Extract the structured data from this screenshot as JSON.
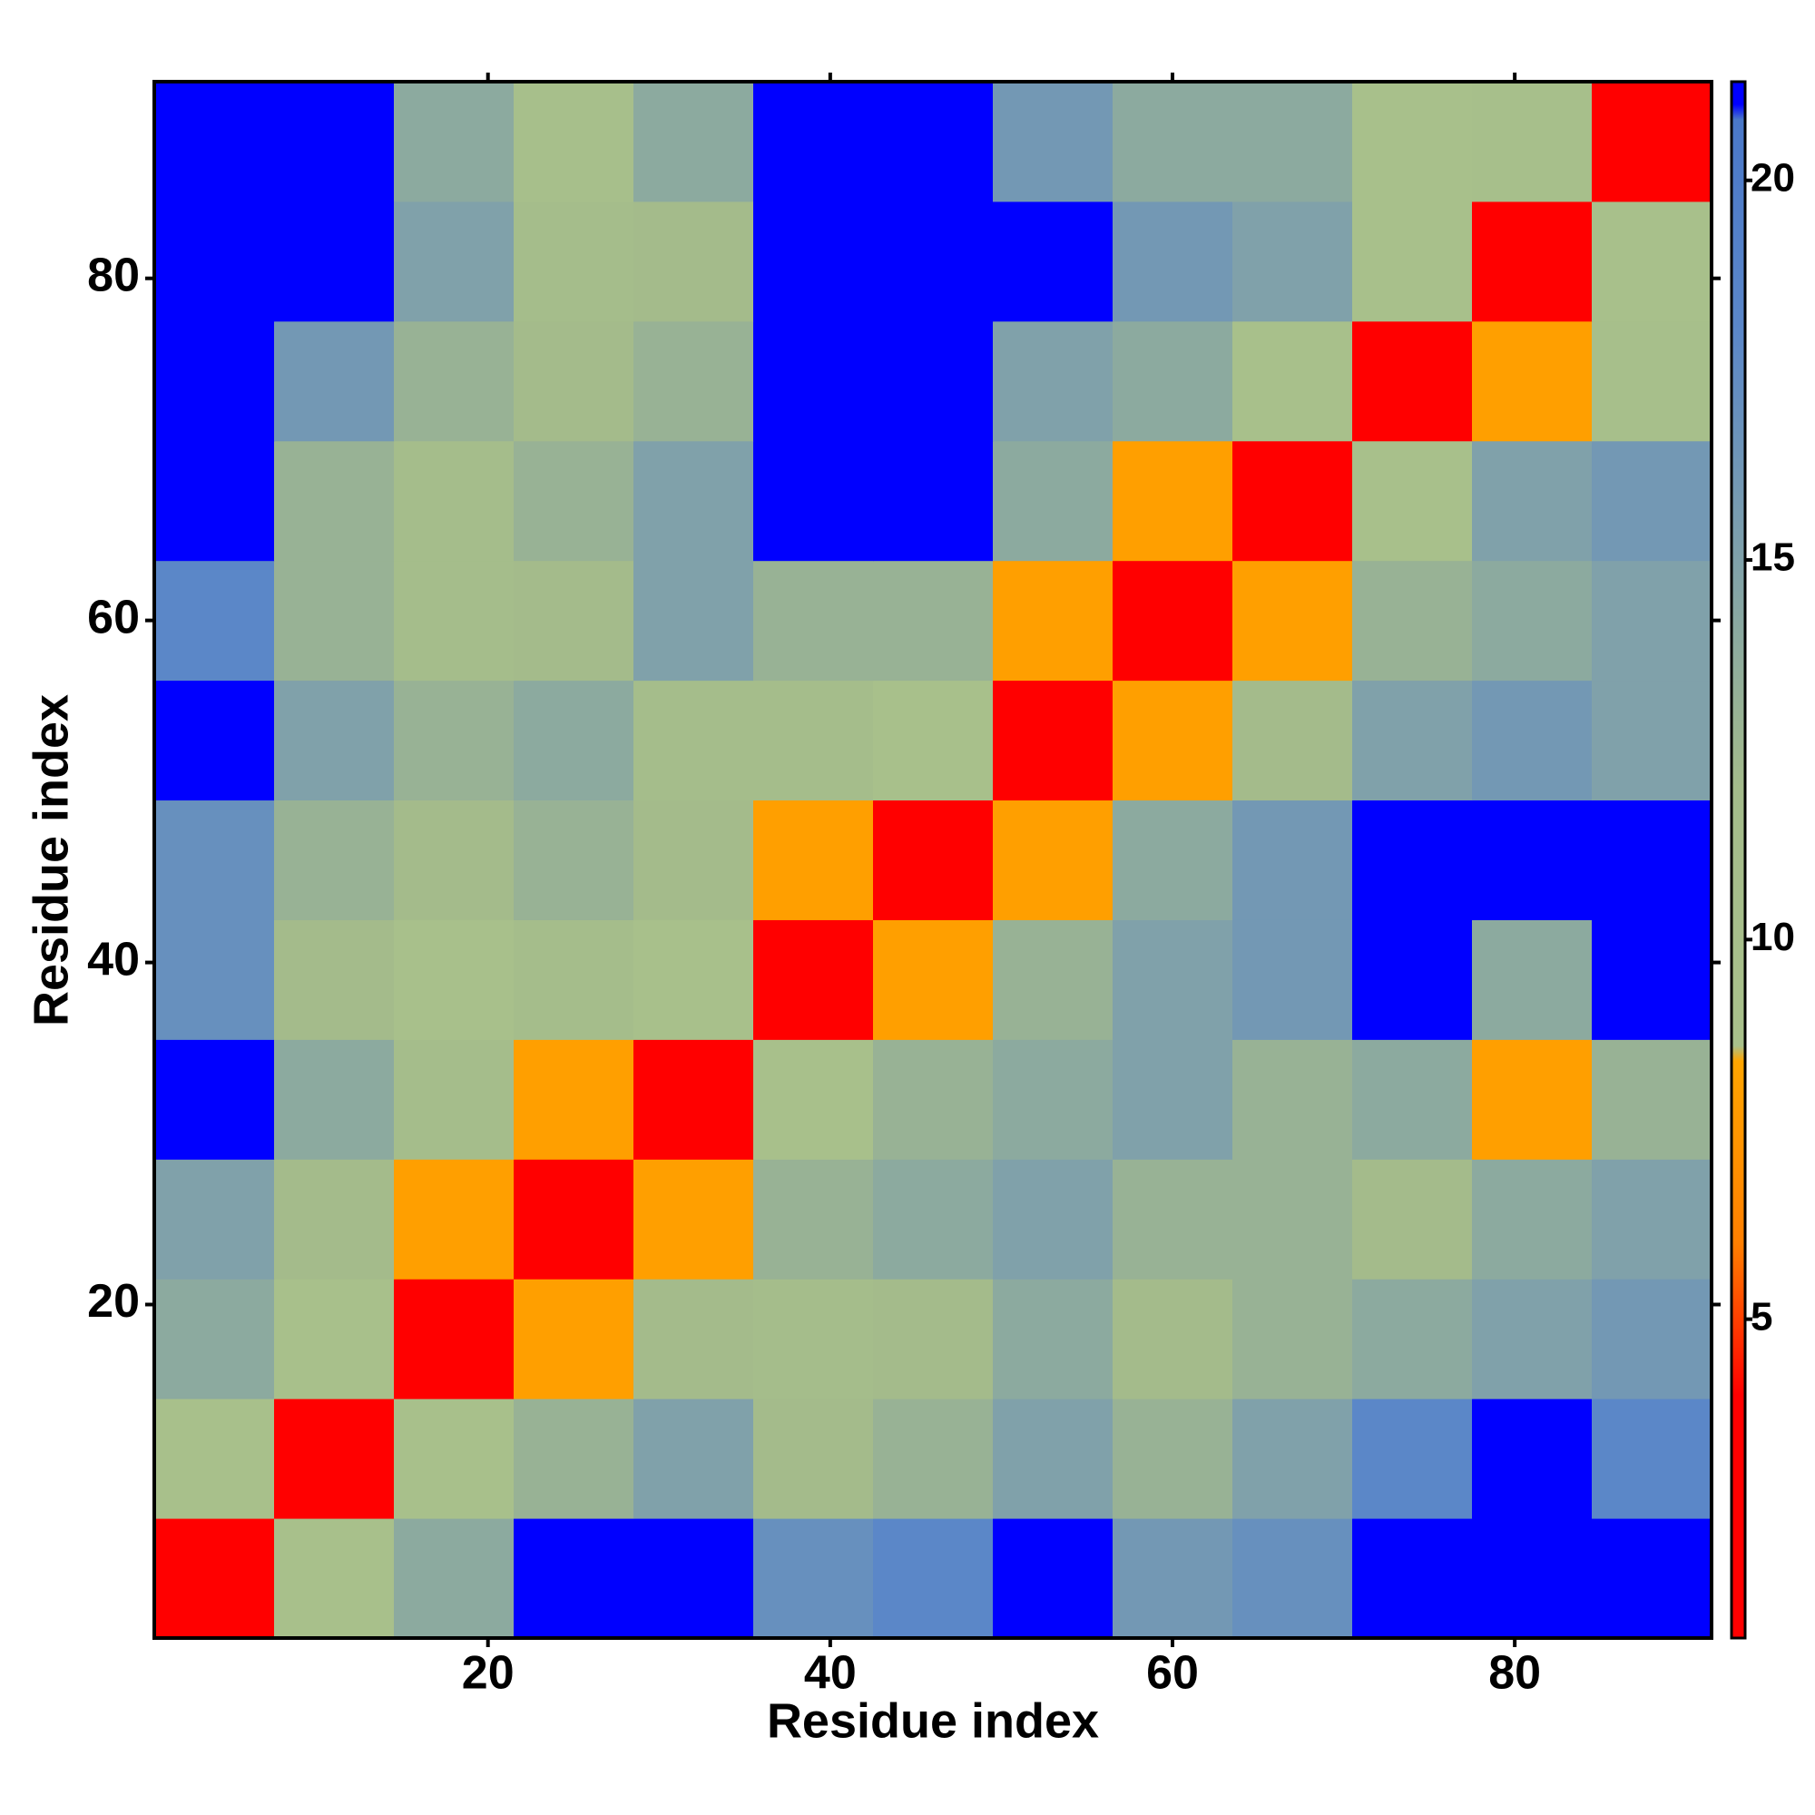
{
  "chart_data": {
    "type": "heatmap",
    "x_label": "Residue index",
    "y_label": "Residue index",
    "x_edges": [
      0.5,
      7.5,
      14.5,
      21.5,
      28.5,
      35.5,
      42.5,
      49.5,
      56.5,
      63.5,
      70.5,
      77.5,
      84.5,
      91.5
    ],
    "y_edges": [
      0.5,
      7.5,
      14.5,
      21.5,
      28.5,
      35.5,
      42.5,
      49.5,
      56.5,
      63.5,
      70.5,
      77.5,
      84.5,
      91.5
    ],
    "z": [
      [
        3,
        9,
        14,
        21.3,
        21.3,
        17,
        18,
        21.3,
        16,
        17,
        21.3,
        21.3,
        21.3
      ],
      [
        9,
        4,
        9,
        13,
        15,
        12,
        13,
        15,
        13,
        15,
        18,
        21.3,
        18
      ],
      [
        14,
        9,
        4,
        8,
        12,
        11,
        12,
        14,
        12,
        13,
        14,
        15,
        16
      ],
      [
        15,
        12,
        8,
        4,
        8,
        13,
        14,
        15,
        13,
        13,
        12,
        14,
        15
      ],
      [
        21.3,
        14,
        11,
        8,
        4,
        9,
        13,
        14,
        15,
        13,
        14,
        8,
        13
      ],
      [
        17,
        12,
        9,
        11,
        9,
        4,
        8,
        13,
        15,
        16,
        21.3,
        14,
        21.3
      ],
      [
        17,
        13,
        12,
        13,
        12,
        8,
        4,
        8,
        14,
        16,
        21.3,
        21.3,
        21.3
      ],
      [
        21.3,
        15,
        13,
        14,
        11,
        11,
        9,
        4,
        8,
        12,
        15,
        16,
        15
      ],
      [
        18,
        13,
        11,
        12,
        15,
        13,
        13,
        8,
        4,
        8,
        13,
        14,
        15
      ],
      [
        21.3,
        13,
        11,
        13,
        15,
        21.3,
        21.3,
        14,
        8,
        4,
        9,
        15,
        16
      ],
      [
        21.3,
        16,
        13,
        12,
        13,
        21.3,
        21.3,
        15,
        14,
        9,
        4,
        8,
        10
      ],
      [
        21.3,
        21.3,
        15,
        11,
        12,
        21.3,
        21.3,
        21.3,
        16,
        15,
        9,
        4,
        9
      ],
      [
        21.3,
        21.3,
        14,
        10,
        14,
        21.3,
        21.3,
        16,
        14,
        14,
        9,
        10,
        3
      ]
    ],
    "xlim": [
      0.5,
      91.5
    ],
    "ylim": [
      0.5,
      91.5
    ],
    "xticks": [
      20,
      40,
      60,
      80
    ],
    "yticks": [
      20,
      40,
      60,
      80
    ],
    "clim": [
      0.8,
      21.3
    ],
    "cticks": [
      5,
      10,
      15,
      20
    ],
    "colorscale": [
      {
        "value": 0.8,
        "color": "#ff0000"
      },
      {
        "value": 4,
        "color": "#ff0000"
      },
      {
        "value": 6,
        "color": "#ff7f00"
      },
      {
        "value": 8.4,
        "color": "#ffa500"
      },
      {
        "value": 8.6,
        "color": "#a9c18b"
      },
      {
        "value": 12,
        "color": "#a4bb8b"
      },
      {
        "value": 18,
        "color": "#5b87c8"
      },
      {
        "value": 20.8,
        "color": "#4a78c8"
      },
      {
        "value": 21,
        "color": "#0000ff"
      },
      {
        "value": 21.3,
        "color": "#0000ff"
      }
    ]
  }
}
